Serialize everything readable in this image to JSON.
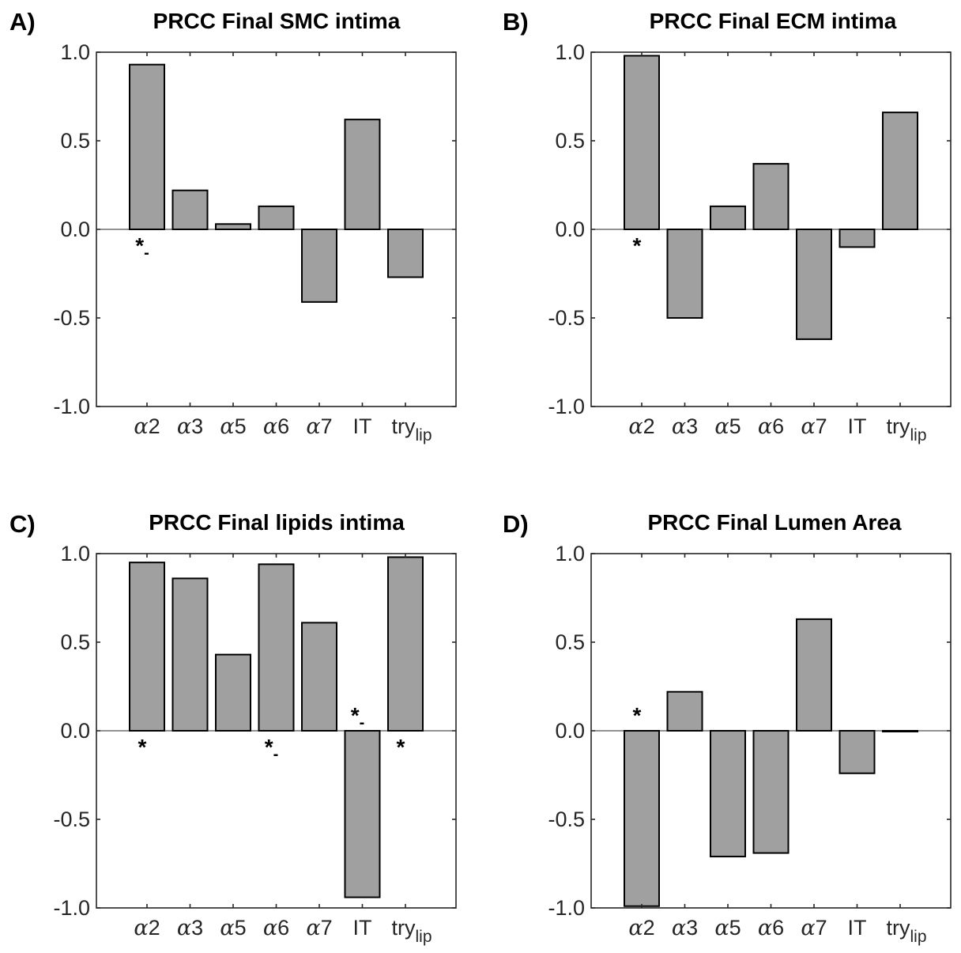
{
  "chart_data": [
    {
      "type": "bar",
      "panel": "A)",
      "title": "PRCC Final SMC intima",
      "categories": [
        "α2",
        "α3",
        "α5",
        "α6",
        "α7",
        "IT",
        "try_lip"
      ],
      "category_labels": [
        {
          "greek": "α",
          "text": "2"
        },
        {
          "greek": "α",
          "text": "3"
        },
        {
          "greek": "α",
          "text": "5"
        },
        {
          "greek": "α",
          "text": "6"
        },
        {
          "greek": "α",
          "text": "7"
        },
        {
          "text": "IT"
        },
        {
          "text": "try",
          "sub": "lip"
        }
      ],
      "values": [
        0.93,
        0.22,
        0.03,
        0.13,
        -0.41,
        0.62,
        -0.27
      ],
      "significance": [
        "*-",
        "",
        "",
        "",
        "",
        "",
        ""
      ],
      "ylim": [
        -1,
        1
      ],
      "yticks": [
        "-1.0",
        "-0.5",
        "0.0",
        "0.5",
        "1.0"
      ],
      "xlabel": "",
      "ylabel": ""
    },
    {
      "type": "bar",
      "panel": "B)",
      "title": "PRCC Final ECM intima",
      "categories": [
        "α2",
        "α3",
        "α5",
        "α6",
        "α7",
        "IT",
        "try_lip"
      ],
      "category_labels": [
        {
          "greek": "α",
          "text": "2"
        },
        {
          "greek": "α",
          "text": "3"
        },
        {
          "greek": "α",
          "text": "5"
        },
        {
          "greek": "α",
          "text": "6"
        },
        {
          "greek": "α",
          "text": "7"
        },
        {
          "text": "IT"
        },
        {
          "text": "try",
          "sub": "lip"
        }
      ],
      "values": [
        0.98,
        -0.5,
        0.13,
        0.37,
        -0.62,
        -0.1,
        0.66
      ],
      "significance": [
        "*",
        "",
        "",
        "",
        "",
        "",
        ""
      ],
      "ylim": [
        -1,
        1
      ],
      "yticks": [
        "-1.0",
        "-0.5",
        "0.0",
        "0.5",
        "1.0"
      ],
      "xlabel": "",
      "ylabel": ""
    },
    {
      "type": "bar",
      "panel": "C)",
      "title": "PRCC Final lipids intima",
      "categories": [
        "α2",
        "α3",
        "α5",
        "α6",
        "α7",
        "IT",
        "try_lip"
      ],
      "category_labels": [
        {
          "greek": "α",
          "text": "2"
        },
        {
          "greek": "α",
          "text": "3"
        },
        {
          "greek": "α",
          "text": "5"
        },
        {
          "greek": "α",
          "text": "6"
        },
        {
          "greek": "α",
          "text": "7"
        },
        {
          "text": "IT"
        },
        {
          "text": "try",
          "sub": "lip"
        }
      ],
      "values": [
        0.95,
        0.86,
        0.43,
        0.94,
        0.61,
        -0.94,
        0.98
      ],
      "significance": [
        "*",
        "",
        "",
        "*-",
        "",
        "*-",
        "*"
      ],
      "ylim": [
        -1,
        1
      ],
      "yticks": [
        "-1.0",
        "-0.5",
        "0.0",
        "0.5",
        "1.0"
      ],
      "xlabel": "",
      "ylabel": ""
    },
    {
      "type": "bar",
      "panel": "D)",
      "title": "PRCC Final Lumen Area",
      "categories": [
        "α2",
        "α3",
        "α5",
        "α6",
        "α7",
        "IT",
        "try_lip"
      ],
      "category_labels": [
        {
          "greek": "α",
          "text": "2"
        },
        {
          "greek": "α",
          "text": "3"
        },
        {
          "greek": "α",
          "text": "5"
        },
        {
          "greek": "α",
          "text": "6"
        },
        {
          "greek": "α",
          "text": "7"
        },
        {
          "text": "IT"
        },
        {
          "text": "try",
          "sub": "lip"
        }
      ],
      "values": [
        -0.99,
        0.22,
        -0.71,
        -0.69,
        0.63,
        -0.24,
        0.0
      ],
      "significance": [
        "*",
        "",
        "",
        "",
        "",
        "",
        ""
      ],
      "ylim": [
        -1,
        1
      ],
      "yticks": [
        "-1.0",
        "-0.5",
        "0.0",
        "0.5",
        "1.0"
      ],
      "xlabel": "",
      "ylabel": ""
    }
  ],
  "colors": {
    "bar_fill": "#a0a0a0",
    "bar_edge": "#000000",
    "axis": "#262626"
  }
}
